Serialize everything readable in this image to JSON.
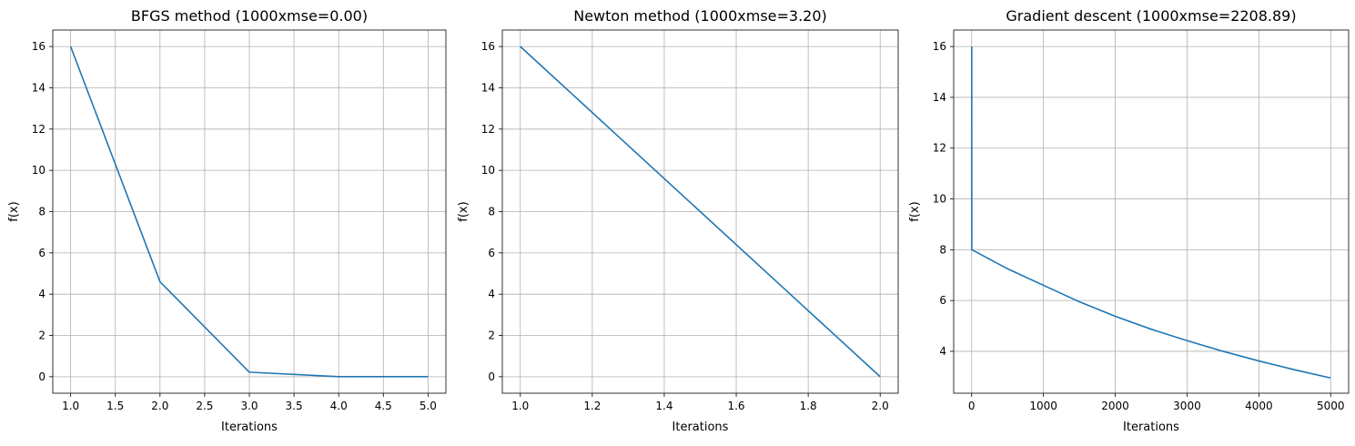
{
  "chart_data": [
    {
      "type": "line",
      "title": "BFGS method (1000xmse=0.00)",
      "xlabel": "Iterations",
      "ylabel": "f(x)",
      "xlim": [
        0.8,
        5.2
      ],
      "ylim": [
        -0.8,
        16.8
      ],
      "xticks": [
        1.0,
        1.5,
        2.0,
        2.5,
        3.0,
        3.5,
        4.0,
        4.5,
        5.0
      ],
      "xtick_labels": [
        "1.0",
        "1.5",
        "2.0",
        "2.5",
        "3.0",
        "3.5",
        "4.0",
        "4.5",
        "5.0"
      ],
      "yticks": [
        0,
        2,
        4,
        6,
        8,
        10,
        12,
        14,
        16
      ],
      "ytick_labels": [
        "0",
        "2",
        "4",
        "6",
        "8",
        "10",
        "12",
        "14",
        "16"
      ],
      "grid": true,
      "color": "#1f77b4",
      "x": [
        1,
        2,
        3,
        4,
        5
      ],
      "y": [
        16.0,
        4.6,
        0.22,
        0.0,
        0.0
      ]
    },
    {
      "type": "line",
      "title": "Newton method (1000xmse=3.20)",
      "xlabel": "Iterations",
      "ylabel": "f(x)",
      "xlim": [
        0.95,
        2.05
      ],
      "ylim": [
        -0.8,
        16.8
      ],
      "xticks": [
        1.0,
        1.2,
        1.4,
        1.6,
        1.8,
        2.0
      ],
      "xtick_labels": [
        "1.0",
        "1.2",
        "1.4",
        "1.6",
        "1.8",
        "2.0"
      ],
      "yticks": [
        0,
        2,
        4,
        6,
        8,
        10,
        12,
        14,
        16
      ],
      "ytick_labels": [
        "0",
        "2",
        "4",
        "6",
        "8",
        "10",
        "12",
        "14",
        "16"
      ],
      "grid": true,
      "color": "#1f77b4",
      "x": [
        1,
        2
      ],
      "y": [
        16.0,
        0.0
      ]
    },
    {
      "type": "line",
      "title": "Gradient descent (1000xmse=2208.89)",
      "xlabel": "Iterations",
      "ylabel": "f(x)",
      "xlim": [
        -250,
        5250
      ],
      "ylim": [
        2.35,
        16.65
      ],
      "xticks": [
        0,
        1000,
        2000,
        3000,
        4000,
        5000
      ],
      "xtick_labels": [
        "0",
        "1000",
        "2000",
        "3000",
        "4000",
        "5000"
      ],
      "yticks": [
        4,
        6,
        8,
        10,
        12,
        14,
        16
      ],
      "ytick_labels": [
        "4",
        "6",
        "8",
        "10",
        "12",
        "14",
        "16"
      ],
      "grid": true,
      "color": "#1f77b4",
      "x": [
        1,
        2,
        500,
        1000,
        1500,
        2000,
        2500,
        3000,
        3500,
        4000,
        4500,
        5000
      ],
      "y": [
        16.0,
        8.0,
        7.25,
        6.6,
        5.95,
        5.38,
        4.87,
        4.42,
        4.0,
        3.62,
        3.27,
        2.95
      ]
    }
  ]
}
